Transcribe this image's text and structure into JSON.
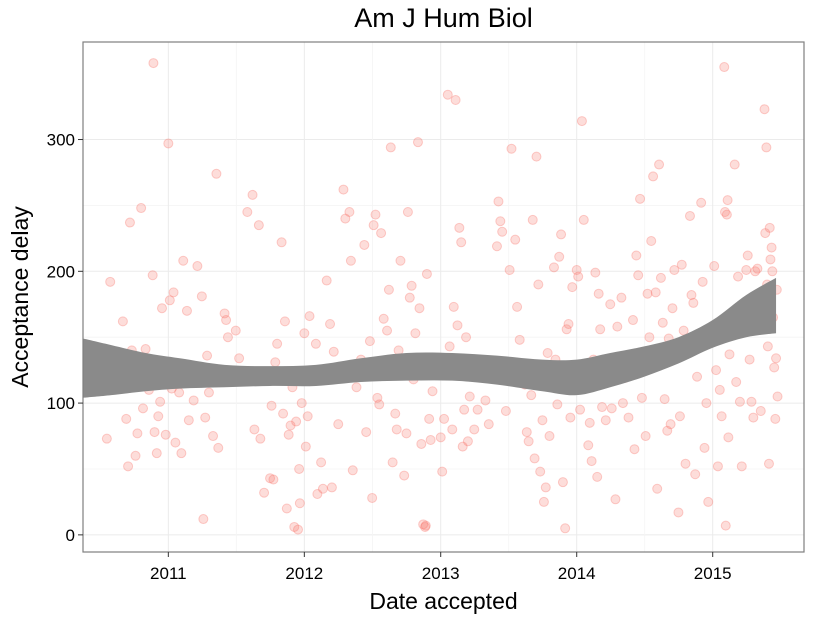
{
  "chart_data": {
    "type": "scatter",
    "title": "Am J Hum Biol",
    "xlabel": "Date accepted",
    "ylabel": "Acceptance delay",
    "x_ticks": [
      "2011",
      "2012",
      "2013",
      "2014",
      "2015"
    ],
    "y_ticks": [
      "0",
      "100",
      "200",
      "300"
    ],
    "xlim": [
      "2010-05-17",
      "2015-09-03"
    ],
    "ylim": [
      -13,
      374
    ],
    "grid": true,
    "point_color": "#F8766D",
    "band_color": "#8A8A8A",
    "smooth_band": {
      "x": [
        "2010-05-17",
        "2010-08-01",
        "2010-11-01",
        "2011-02-01",
        "2011-06-01",
        "2011-10-01",
        "2012-02-01",
        "2012-06-01",
        "2012-10-01",
        "2013-02-01",
        "2013-06-01",
        "2013-10-01",
        "2014-01-01",
        "2014-04-01",
        "2014-07-01",
        "2014-10-01",
        "2015-01-01",
        "2015-04-01",
        "2015-06-20"
      ],
      "lower": [
        104,
        106,
        109,
        111,
        112,
        113,
        113,
        116,
        117,
        117,
        114,
        109,
        106,
        112,
        120,
        130,
        142,
        150,
        153
      ],
      "upper": [
        149,
        144,
        138,
        134,
        129,
        128,
        129,
        134,
        138,
        138,
        136,
        133,
        133,
        138,
        143,
        150,
        163,
        182,
        195
      ]
    },
    "points": [
      {
        "x": "2010-07-29",
        "y": 192
      },
      {
        "x": "2010-07-20",
        "y": 73
      },
      {
        "x": "2010-08-20",
        "y": 136
      },
      {
        "x": "2010-09-01",
        "y": 162
      },
      {
        "x": "2010-09-10",
        "y": 88
      },
      {
        "x": "2010-09-15",
        "y": 52
      },
      {
        "x": "2010-09-20",
        "y": 237
      },
      {
        "x": "2010-09-25",
        "y": 140
      },
      {
        "x": "2010-10-01",
        "y": 119
      },
      {
        "x": "2010-10-05",
        "y": 60
      },
      {
        "x": "2010-10-10",
        "y": 77
      },
      {
        "x": "2010-10-20",
        "y": 248
      },
      {
        "x": "2010-10-25",
        "y": 96
      },
      {
        "x": "2010-11-01",
        "y": 141
      },
      {
        "x": "2010-11-10",
        "y": 110
      },
      {
        "x": "2010-11-20",
        "y": 197
      },
      {
        "x": "2010-11-22",
        "y": 358
      },
      {
        "x": "2010-11-25",
        "y": 78
      },
      {
        "x": "2010-12-01",
        "y": 62
      },
      {
        "x": "2010-12-05",
        "y": 90
      },
      {
        "x": "2010-12-10",
        "y": 101
      },
      {
        "x": "2010-12-15",
        "y": 172
      },
      {
        "x": "2010-12-20",
        "y": 127
      },
      {
        "x": "2010-12-25",
        "y": 76
      },
      {
        "x": "2011-01-01",
        "y": 297
      },
      {
        "x": "2011-01-05",
        "y": 178
      },
      {
        "x": "2011-01-10",
        "y": 111
      },
      {
        "x": "2011-01-15",
        "y": 184
      },
      {
        "x": "2011-01-20",
        "y": 70
      },
      {
        "x": "2011-01-30",
        "y": 108
      },
      {
        "x": "2011-02-05",
        "y": 62
      },
      {
        "x": "2011-02-10",
        "y": 208
      },
      {
        "x": "2011-02-20",
        "y": 170
      },
      {
        "x": "2011-02-25",
        "y": 87
      },
      {
        "x": "2011-03-01",
        "y": 124
      },
      {
        "x": "2011-03-10",
        "y": 102
      },
      {
        "x": "2011-03-20",
        "y": 204
      },
      {
        "x": "2011-03-25",
        "y": 119
      },
      {
        "x": "2011-04-01",
        "y": 181
      },
      {
        "x": "2011-04-05",
        "y": 12
      },
      {
        "x": "2011-04-10",
        "y": 89
      },
      {
        "x": "2011-04-15",
        "y": 136
      },
      {
        "x": "2011-04-20",
        "y": 108
      },
      {
        "x": "2011-05-01",
        "y": 75
      },
      {
        "x": "2011-05-10",
        "y": 274
      },
      {
        "x": "2011-05-15",
        "y": 66
      },
      {
        "x": "2011-06-01",
        "y": 168
      },
      {
        "x": "2011-06-05",
        "y": 163
      },
      {
        "x": "2011-06-10",
        "y": 150
      },
      {
        "x": "2011-06-15",
        "y": 119
      },
      {
        "x": "2011-07-01",
        "y": 155
      },
      {
        "x": "2011-07-10",
        "y": 134
      },
      {
        "x": "2011-08-01",
        "y": 245
      },
      {
        "x": "2011-08-15",
        "y": 258
      },
      {
        "x": "2011-08-20",
        "y": 80
      },
      {
        "x": "2011-09-01",
        "y": 235
      },
      {
        "x": "2011-09-05",
        "y": 73
      },
      {
        "x": "2011-09-10",
        "y": 123
      },
      {
        "x": "2011-09-15",
        "y": 32
      },
      {
        "x": "2011-10-01",
        "y": 43
      },
      {
        "x": "2011-10-05",
        "y": 98
      },
      {
        "x": "2011-10-10",
        "y": 42
      },
      {
        "x": "2011-10-15",
        "y": 131
      },
      {
        "x": "2011-10-20",
        "y": 145
      },
      {
        "x": "2011-11-01",
        "y": 222
      },
      {
        "x": "2011-11-05",
        "y": 92
      },
      {
        "x": "2011-11-10",
        "y": 162
      },
      {
        "x": "2011-11-15",
        "y": 20
      },
      {
        "x": "2011-11-20",
        "y": 76
      },
      {
        "x": "2011-11-25",
        "y": 83
      },
      {
        "x": "2011-11-30",
        "y": 112
      },
      {
        "x": "2011-12-05",
        "y": 6
      },
      {
        "x": "2011-12-10",
        "y": 86
      },
      {
        "x": "2011-12-15",
        "y": 4
      },
      {
        "x": "2011-12-18",
        "y": 50
      },
      {
        "x": "2011-12-20",
        "y": 24
      },
      {
        "x": "2011-12-25",
        "y": 100
      },
      {
        "x": "2012-01-01",
        "y": 153
      },
      {
        "x": "2012-01-05",
        "y": 67
      },
      {
        "x": "2012-01-10",
        "y": 90
      },
      {
        "x": "2012-01-15",
        "y": 166
      },
      {
        "x": "2012-01-20",
        "y": 117
      },
      {
        "x": "2012-02-01",
        "y": 145
      },
      {
        "x": "2012-02-05",
        "y": 31
      },
      {
        "x": "2012-02-10",
        "y": 122
      },
      {
        "x": "2012-02-15",
        "y": 55
      },
      {
        "x": "2012-02-20",
        "y": 35
      },
      {
        "x": "2012-02-25",
        "y": 118
      },
      {
        "x": "2012-03-01",
        "y": 193
      },
      {
        "x": "2012-03-10",
        "y": 160
      },
      {
        "x": "2012-03-15",
        "y": 36
      },
      {
        "x": "2012-03-20",
        "y": 139
      },
      {
        "x": "2012-04-01",
        "y": 84
      },
      {
        "x": "2012-04-15",
        "y": 262
      },
      {
        "x": "2012-04-20",
        "y": 240
      },
      {
        "x": "2012-05-01",
        "y": 245
      },
      {
        "x": "2012-05-05",
        "y": 208
      },
      {
        "x": "2012-05-10",
        "y": 49
      },
      {
        "x": "2012-05-20",
        "y": 112
      },
      {
        "x": "2012-06-01",
        "y": 133
      },
      {
        "x": "2012-06-10",
        "y": 220
      },
      {
        "x": "2012-06-15",
        "y": 78
      },
      {
        "x": "2012-06-25",
        "y": 147
      },
      {
        "x": "2012-07-01",
        "y": 28
      },
      {
        "x": "2012-07-05",
        "y": 235
      },
      {
        "x": "2012-07-10",
        "y": 243
      },
      {
        "x": "2012-07-15",
        "y": 104
      },
      {
        "x": "2012-07-20",
        "y": 99
      },
      {
        "x": "2012-07-25",
        "y": 229
      },
      {
        "x": "2012-08-01",
        "y": 164
      },
      {
        "x": "2012-08-10",
        "y": 155
      },
      {
        "x": "2012-08-15",
        "y": 186
      },
      {
        "x": "2012-08-20",
        "y": 294
      },
      {
        "x": "2012-08-25",
        "y": 55
      },
      {
        "x": "2012-09-01",
        "y": 92
      },
      {
        "x": "2012-09-05",
        "y": 80
      },
      {
        "x": "2012-09-10",
        "y": 140
      },
      {
        "x": "2012-09-15",
        "y": 208
      },
      {
        "x": "2012-09-20",
        "y": 133
      },
      {
        "x": "2012-09-25",
        "y": 45
      },
      {
        "x": "2012-10-01",
        "y": 77
      },
      {
        "x": "2012-10-05",
        "y": 245
      },
      {
        "x": "2012-10-10",
        "y": 180
      },
      {
        "x": "2012-10-15",
        "y": 189
      },
      {
        "x": "2012-10-20",
        "y": 118
      },
      {
        "x": "2012-10-25",
        "y": 153
      },
      {
        "x": "2012-11-01",
        "y": 298
      },
      {
        "x": "2012-11-05",
        "y": 172
      },
      {
        "x": "2012-11-10",
        "y": 69
      },
      {
        "x": "2012-11-15",
        "y": 8
      },
      {
        "x": "2012-11-20",
        "y": 6
      },
      {
        "x": "2012-11-22",
        "y": 7
      },
      {
        "x": "2012-11-25",
        "y": 198
      },
      {
        "x": "2012-12-01",
        "y": 88
      },
      {
        "x": "2012-12-05",
        "y": 72
      },
      {
        "x": "2012-12-10",
        "y": 109
      },
      {
        "x": "2012-12-20",
        "y": 132
      },
      {
        "x": "2013-01-01",
        "y": 74
      },
      {
        "x": "2013-01-05",
        "y": 48
      },
      {
        "x": "2013-01-10",
        "y": 88
      },
      {
        "x": "2013-01-20",
        "y": 334
      },
      {
        "x": "2013-01-25",
        "y": 143
      },
      {
        "x": "2013-02-01",
        "y": 80
      },
      {
        "x": "2013-02-05",
        "y": 173
      },
      {
        "x": "2013-02-10",
        "y": 330
      },
      {
        "x": "2013-02-15",
        "y": 159
      },
      {
        "x": "2013-02-20",
        "y": 233
      },
      {
        "x": "2013-02-25",
        "y": 222
      },
      {
        "x": "2013-03-01",
        "y": 67
      },
      {
        "x": "2013-03-05",
        "y": 95
      },
      {
        "x": "2013-03-10",
        "y": 150
      },
      {
        "x": "2013-03-15",
        "y": 71
      },
      {
        "x": "2013-03-20",
        "y": 105
      },
      {
        "x": "2013-04-01",
        "y": 80
      },
      {
        "x": "2013-04-10",
        "y": 95
      },
      {
        "x": "2013-05-01",
        "y": 102
      },
      {
        "x": "2013-05-10",
        "y": 84
      },
      {
        "x": "2013-05-20",
        "y": 122
      },
      {
        "x": "2013-06-01",
        "y": 219
      },
      {
        "x": "2013-06-05",
        "y": 253
      },
      {
        "x": "2013-06-10",
        "y": 238
      },
      {
        "x": "2013-06-15",
        "y": 230
      },
      {
        "x": "2013-06-25",
        "y": 94
      },
      {
        "x": "2013-07-01",
        "y": 125
      },
      {
        "x": "2013-07-05",
        "y": 201
      },
      {
        "x": "2013-07-10",
        "y": 293
      },
      {
        "x": "2013-07-20",
        "y": 224
      },
      {
        "x": "2013-07-25",
        "y": 173
      },
      {
        "x": "2013-08-01",
        "y": 148
      },
      {
        "x": "2013-08-10",
        "y": 126
      },
      {
        "x": "2013-08-15",
        "y": 114
      },
      {
        "x": "2013-08-20",
        "y": 78
      },
      {
        "x": "2013-08-25",
        "y": 71
      },
      {
        "x": "2013-09-01",
        "y": 106
      },
      {
        "x": "2013-09-05",
        "y": 239
      },
      {
        "x": "2013-09-10",
        "y": 58
      },
      {
        "x": "2013-09-15",
        "y": 287
      },
      {
        "x": "2013-09-20",
        "y": 190
      },
      {
        "x": "2013-09-25",
        "y": 48
      },
      {
        "x": "2013-10-01",
        "y": 87
      },
      {
        "x": "2013-10-05",
        "y": 25
      },
      {
        "x": "2013-10-10",
        "y": 36
      },
      {
        "x": "2013-10-15",
        "y": 138
      },
      {
        "x": "2013-10-20",
        "y": 75
      },
      {
        "x": "2013-11-01",
        "y": 203
      },
      {
        "x": "2013-11-05",
        "y": 133
      },
      {
        "x": "2013-11-10",
        "y": 99
      },
      {
        "x": "2013-11-15",
        "y": 211
      },
      {
        "x": "2013-11-20",
        "y": 228
      },
      {
        "x": "2013-11-25",
        "y": 40
      },
      {
        "x": "2013-12-01",
        "y": 5
      },
      {
        "x": "2013-12-05",
        "y": 156
      },
      {
        "x": "2013-12-10",
        "y": 160
      },
      {
        "x": "2013-12-15",
        "y": 89
      },
      {
        "x": "2013-12-20",
        "y": 188
      },
      {
        "x": "2014-01-01",
        "y": 201
      },
      {
        "x": "2014-01-05",
        "y": 196
      },
      {
        "x": "2014-01-10",
        "y": 95
      },
      {
        "x": "2014-01-15",
        "y": 314
      },
      {
        "x": "2014-01-20",
        "y": 239
      },
      {
        "x": "2014-01-25",
        "y": 112
      },
      {
        "x": "2014-02-01",
        "y": 68
      },
      {
        "x": "2014-02-05",
        "y": 85
      },
      {
        "x": "2014-02-10",
        "y": 56
      },
      {
        "x": "2014-02-15",
        "y": 133
      },
      {
        "x": "2014-02-20",
        "y": 199
      },
      {
        "x": "2014-02-25",
        "y": 44
      },
      {
        "x": "2014-03-01",
        "y": 183
      },
      {
        "x": "2014-03-05",
        "y": 156
      },
      {
        "x": "2014-03-10",
        "y": 97
      },
      {
        "x": "2014-03-15",
        "y": 119
      },
      {
        "x": "2014-03-20",
        "y": 87
      },
      {
        "x": "2014-04-01",
        "y": 175
      },
      {
        "x": "2014-04-05",
        "y": 96
      },
      {
        "x": "2014-04-10",
        "y": 131
      },
      {
        "x": "2014-04-15",
        "y": 27
      },
      {
        "x": "2014-04-20",
        "y": 158
      },
      {
        "x": "2014-05-01",
        "y": 180
      },
      {
        "x": "2014-05-05",
        "y": 100
      },
      {
        "x": "2014-05-10",
        "y": 119
      },
      {
        "x": "2014-05-20",
        "y": 89
      },
      {
        "x": "2014-06-01",
        "y": 163
      },
      {
        "x": "2014-06-05",
        "y": 65
      },
      {
        "x": "2014-06-10",
        "y": 212
      },
      {
        "x": "2014-06-15",
        "y": 197
      },
      {
        "x": "2014-06-20",
        "y": 255
      },
      {
        "x": "2014-06-25",
        "y": 104
      },
      {
        "x": "2014-07-01",
        "y": 131
      },
      {
        "x": "2014-07-05",
        "y": 75
      },
      {
        "x": "2014-07-10",
        "y": 183
      },
      {
        "x": "2014-07-15",
        "y": 150
      },
      {
        "x": "2014-07-20",
        "y": 223
      },
      {
        "x": "2014-07-25",
        "y": 272
      },
      {
        "x": "2014-08-01",
        "y": 184
      },
      {
        "x": "2014-08-05",
        "y": 35
      },
      {
        "x": "2014-08-10",
        "y": 281
      },
      {
        "x": "2014-08-15",
        "y": 195
      },
      {
        "x": "2014-08-20",
        "y": 161
      },
      {
        "x": "2014-08-25",
        "y": 103
      },
      {
        "x": "2014-09-01",
        "y": 79
      },
      {
        "x": "2014-09-05",
        "y": 149
      },
      {
        "x": "2014-09-10",
        "y": 84
      },
      {
        "x": "2014-09-15",
        "y": 172
      },
      {
        "x": "2014-09-20",
        "y": 201
      },
      {
        "x": "2014-10-01",
        "y": 17
      },
      {
        "x": "2014-10-05",
        "y": 90
      },
      {
        "x": "2014-10-10",
        "y": 205
      },
      {
        "x": "2014-10-15",
        "y": 155
      },
      {
        "x": "2014-10-20",
        "y": 54
      },
      {
        "x": "2014-11-01",
        "y": 242
      },
      {
        "x": "2014-11-05",
        "y": 182
      },
      {
        "x": "2014-11-10",
        "y": 176
      },
      {
        "x": "2014-11-15",
        "y": 46
      },
      {
        "x": "2014-11-20",
        "y": 120
      },
      {
        "x": "2014-12-01",
        "y": 252
      },
      {
        "x": "2014-12-05",
        "y": 192
      },
      {
        "x": "2014-12-10",
        "y": 66
      },
      {
        "x": "2014-12-15",
        "y": 100
      },
      {
        "x": "2014-12-20",
        "y": 25
      },
      {
        "x": "2015-01-01",
        "y": 152
      },
      {
        "x": "2015-01-05",
        "y": 204
      },
      {
        "x": "2015-01-10",
        "y": 125
      },
      {
        "x": "2015-01-15",
        "y": 52
      },
      {
        "x": "2015-01-20",
        "y": 110
      },
      {
        "x": "2015-01-25",
        "y": 90
      },
      {
        "x": "2015-02-01",
        "y": 355
      },
      {
        "x": "2015-02-03",
        "y": 245
      },
      {
        "x": "2015-02-05",
        "y": 7
      },
      {
        "x": "2015-02-08",
        "y": 243
      },
      {
        "x": "2015-02-10",
        "y": 254
      },
      {
        "x": "2015-02-12",
        "y": 74
      },
      {
        "x": "2015-02-15",
        "y": 137
      },
      {
        "x": "2015-02-20",
        "y": 164
      },
      {
        "x": "2015-03-01",
        "y": 281
      },
      {
        "x": "2015-03-05",
        "y": 116
      },
      {
        "x": "2015-03-10",
        "y": 196
      },
      {
        "x": "2015-03-15",
        "y": 101
      },
      {
        "x": "2015-03-20",
        "y": 52
      },
      {
        "x": "2015-04-01",
        "y": 201
      },
      {
        "x": "2015-04-05",
        "y": 212
      },
      {
        "x": "2015-04-10",
        "y": 133
      },
      {
        "x": "2015-04-15",
        "y": 101
      },
      {
        "x": "2015-04-20",
        "y": 89
      },
      {
        "x": "2015-04-25",
        "y": 200
      },
      {
        "x": "2015-05-01",
        "y": 202
      },
      {
        "x": "2015-05-05",
        "y": 157
      },
      {
        "x": "2015-05-10",
        "y": 94
      },
      {
        "x": "2015-05-15",
        "y": 168
      },
      {
        "x": "2015-05-20",
        "y": 323
      },
      {
        "x": "2015-05-22",
        "y": 229
      },
      {
        "x": "2015-05-25",
        "y": 294
      },
      {
        "x": "2015-05-27",
        "y": 190
      },
      {
        "x": "2015-05-29",
        "y": 143
      },
      {
        "x": "2015-06-01",
        "y": 54
      },
      {
        "x": "2015-06-03",
        "y": 233
      },
      {
        "x": "2015-06-05",
        "y": 209
      },
      {
        "x": "2015-06-08",
        "y": 218
      },
      {
        "x": "2015-06-10",
        "y": 200
      },
      {
        "x": "2015-06-12",
        "y": 165
      },
      {
        "x": "2015-06-15",
        "y": 127
      },
      {
        "x": "2015-06-18",
        "y": 88
      },
      {
        "x": "2015-06-20",
        "y": 134
      },
      {
        "x": "2015-06-22",
        "y": 186
      },
      {
        "x": "2015-06-24",
        "y": 105
      }
    ]
  }
}
